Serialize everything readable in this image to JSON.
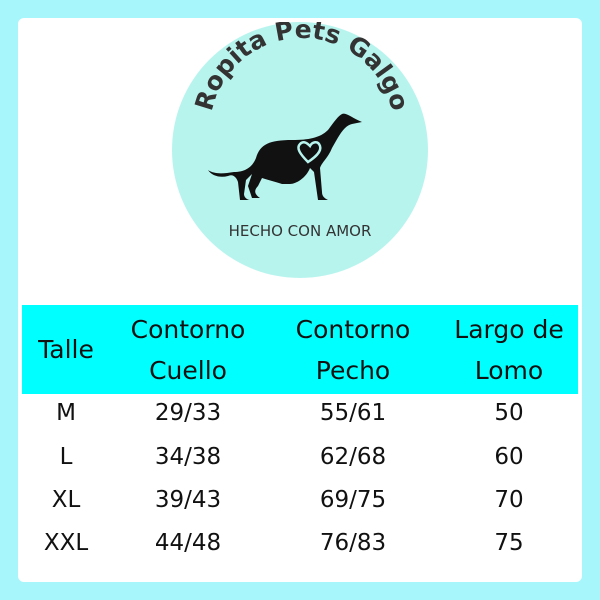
{
  "logo": {
    "brand": "Ropita Pets Galgo",
    "tagline": "HECHO CON AMOR",
    "icon": "greyhound-with-heart-icon",
    "circle_color": "#b8f4ee"
  },
  "colors": {
    "frame": "#a6f6fc",
    "header_band": "#00ffff"
  },
  "table": {
    "headers": [
      {
        "lines": [
          "Talle"
        ]
      },
      {
        "lines": [
          "Contorno",
          "Cuello"
        ]
      },
      {
        "lines": [
          "Contorno",
          "Pecho"
        ]
      },
      {
        "lines": [
          "Largo de",
          "Lomo"
        ]
      }
    ],
    "rows": [
      [
        "M",
        "29/33",
        "55/61",
        "50"
      ],
      [
        "L",
        "34/38",
        "62/68",
        "60"
      ],
      [
        "XL",
        "39/43",
        "69/75",
        "70"
      ],
      [
        "XXL",
        "44/48",
        "76/83",
        "75"
      ]
    ]
  }
}
